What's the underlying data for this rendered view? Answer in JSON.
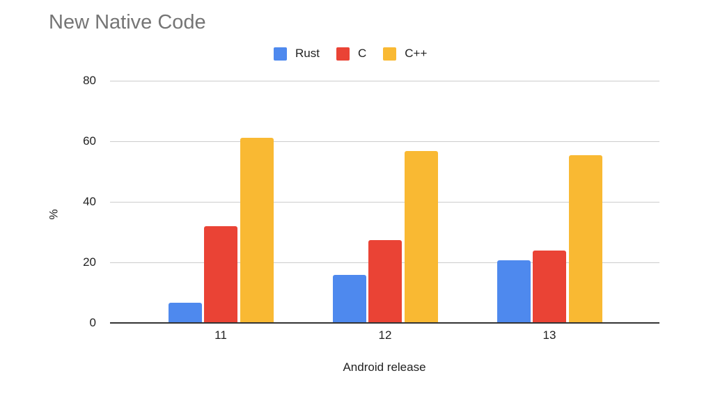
{
  "chart_data": {
    "type": "bar",
    "title": "New Native Code",
    "xlabel": "Android release",
    "ylabel": "%",
    "categories": [
      "11",
      "12",
      "13"
    ],
    "series": [
      {
        "name": "Rust",
        "color": "#4e89ee",
        "values": [
          6.7,
          15.9,
          20.7
        ]
      },
      {
        "name": "C",
        "color": "#ea4335",
        "values": [
          32.0,
          27.4,
          23.9
        ]
      },
      {
        "name": "C++",
        "color": "#f9b933",
        "values": [
          61.2,
          56.8,
          55.4
        ]
      }
    ],
    "ylim": [
      0,
      80
    ],
    "yticks": [
      "0",
      "20",
      "40",
      "60",
      "80"
    ],
    "grid": true,
    "legend_position": "top"
  }
}
